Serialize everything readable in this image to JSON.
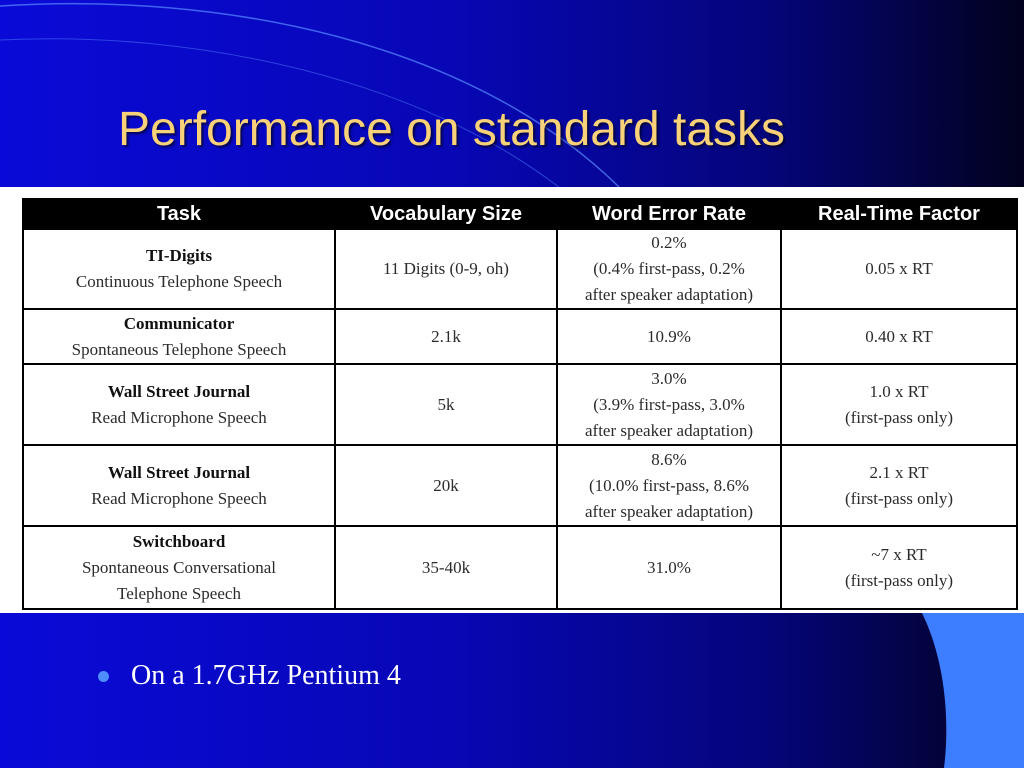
{
  "slide": {
    "title": "Performance on standard tasks"
  },
  "table": {
    "headers": [
      "Task",
      "Vocabulary Size",
      "Word Error Rate",
      "Real-Time Factor"
    ],
    "rows": [
      {
        "task_name": "TI-Digits",
        "task_desc": "Continuous Telephone Speech",
        "vocab": "11 Digits (0-9, oh)",
        "wer": [
          "0.2%",
          "(0.4% first-pass, 0.2%",
          "after speaker adaptation)"
        ],
        "rtf": [
          "0.05 x RT"
        ]
      },
      {
        "task_name": "Communicator",
        "task_desc": "Spontaneous Telephone Speech",
        "vocab": "2.1k",
        "wer": [
          "10.9%"
        ],
        "rtf": [
          "0.40 x RT"
        ]
      },
      {
        "task_name": "Wall Street Journal",
        "task_desc": "Read Microphone Speech",
        "vocab": "5k",
        "wer": [
          "3.0%",
          "(3.9% first-pass, 3.0%",
          "after speaker adaptation)"
        ],
        "rtf": [
          "1.0 x RT",
          "(first-pass only)"
        ]
      },
      {
        "task_name": "Wall Street Journal",
        "task_desc": "Read Microphone Speech",
        "vocab": "20k",
        "wer": [
          "8.6%",
          "(10.0% first-pass, 8.6%",
          "after speaker adaptation)"
        ],
        "rtf": [
          "2.1 x RT",
          "(first-pass only)"
        ]
      },
      {
        "task_name": "Switchboard",
        "task_desc_lines": [
          "Spontaneous Conversational",
          "Telephone Speech"
        ],
        "vocab": "35-40k",
        "wer": [
          "31.0%"
        ],
        "rtf": [
          "~7 x RT",
          "(first-pass only)"
        ]
      }
    ]
  },
  "bullets": [
    "On a 1.7GHz Pentium 4"
  ],
  "colors": {
    "title": "#f9d178",
    "background": "#0707b4",
    "accent": "#3d7dff"
  }
}
